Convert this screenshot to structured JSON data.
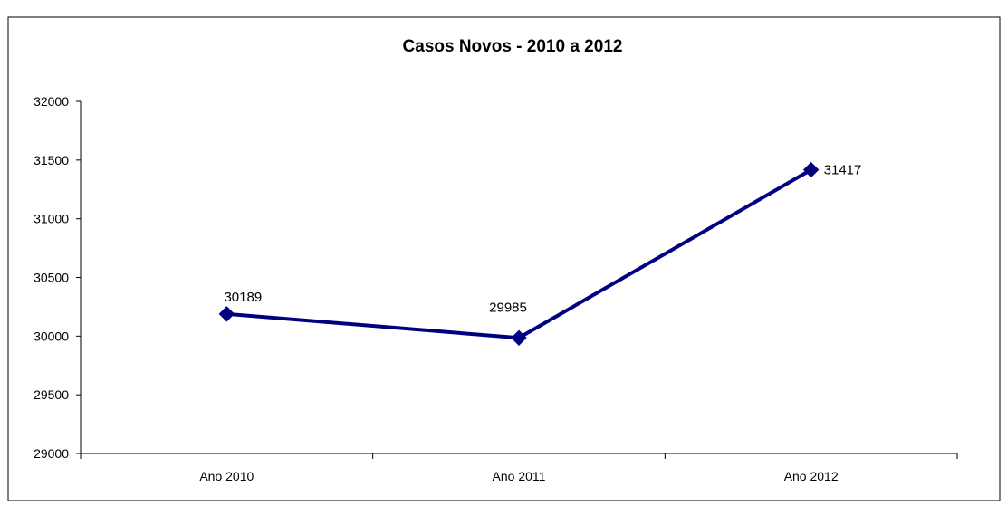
{
  "chart_data": {
    "type": "line",
    "title": "Casos Novos - 2010 a 2012",
    "xlabel": "",
    "ylabel": "",
    "categories": [
      "Ano 2010",
      "Ano 2011",
      "Ano 2012"
    ],
    "series": [
      {
        "values": [
          30189,
          29985,
          31417
        ],
        "color": "#000080"
      }
    ],
    "data_labels": [
      "30189",
      "29985",
      "31417"
    ],
    "ylim": [
      29000,
      32000
    ],
    "yticks": [
      29000,
      29500,
      30000,
      30500,
      31000,
      31500,
      32000
    ],
    "ytick_labels": [
      "29000",
      "29500",
      "30000",
      "30500",
      "31000",
      "31500",
      "32000"
    ],
    "grid": false,
    "legend": "none",
    "marker": "diamond"
  }
}
